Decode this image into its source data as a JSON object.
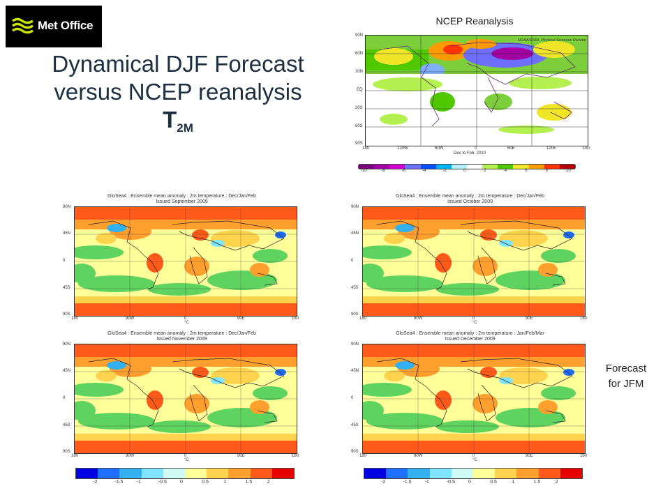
{
  "logo": {
    "text": "Met Office"
  },
  "title": {
    "line1": "Dynamical DJF Forecast",
    "line2": "versus NCEP reanalysis",
    "symbol": "T",
    "subscript": "2M"
  },
  "ncep": {
    "label": "NCEP Reanalysis",
    "credit": "NOAA/ESRL Physical Sciences Division",
    "caption": "Dec to Feb: 2010",
    "lat_ticks": [
      "90N",
      "60N",
      "30N",
      "EQ",
      "30S",
      "60S",
      "90S"
    ],
    "lon_ticks": [
      "180",
      "120W",
      "60W",
      "0",
      "60E",
      "120E",
      "180"
    ],
    "colorbar_labels": [
      "-10",
      "-8",
      "-6",
      "-4",
      "-2",
      "0",
      "2",
      "4",
      "6",
      "8",
      "10"
    ]
  },
  "forecast_panels": [
    {
      "title": "GloSea4 : Ensemble mean anomaly : 2m temperature : Dec/Jan/Feb",
      "issued": "Issued September 2009"
    },
    {
      "title": "GloSea4 : Ensemble mean anomaly : 2m temperature : Dec/Jan/Feb",
      "issued": "Issued October 2009"
    },
    {
      "title": "GloSea4 : Ensemble mean anomaly : 2m temperature : Dec/Jan/Feb",
      "issued": "Issued November 2009"
    },
    {
      "title": "GloSea4 : Ensemble mean anomaly : 2m temperature : Jan/Feb/Mar",
      "issued": "Issued December 2009"
    }
  ],
  "forecast_axes": {
    "lat_ticks": [
      "90N",
      "45N",
      "0",
      "45S",
      "90S"
    ],
    "lon_ticks": [
      "180",
      "90W",
      "0",
      "90E",
      "180"
    ],
    "unit": "°C"
  },
  "forecast_colorbar_labels": [
    "-2",
    "-1.5",
    "-1",
    "-0.5",
    "0",
    "0.5",
    "1",
    "1.5",
    "2"
  ],
  "jfm_label": {
    "line1": "Forecast",
    "line2": "for JFM"
  },
  "colors": {
    "forecast_scale": [
      "#0000e0",
      "#1e6fff",
      "#33b0f0",
      "#7fe5ff",
      "#d0fbf5",
      "#ffff99",
      "#ffd34d",
      "#ff9f2e",
      "#ff5a1a",
      "#e60000"
    ],
    "ncep_scale": [
      "#7b007b",
      "#a300a3",
      "#d100d1",
      "#6e6eff",
      "#0050ff",
      "#00b4ff",
      "#b4f0ff",
      "#ffffff",
      "#b4f050",
      "#50c800",
      "#f0e628",
      "#ff9a00",
      "#ff3200",
      "#b40000"
    ]
  }
}
